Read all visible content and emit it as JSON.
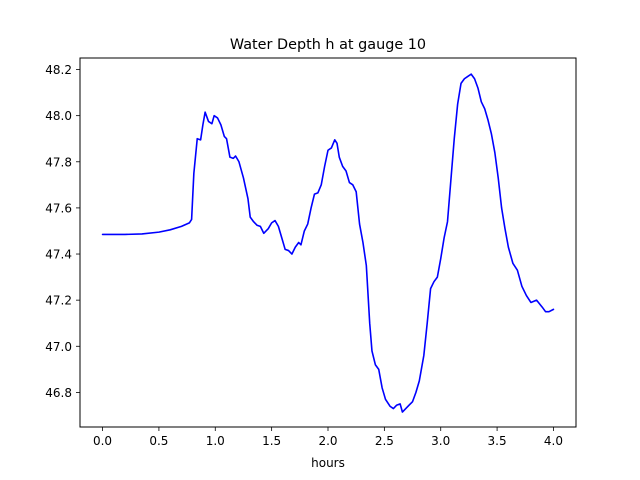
{
  "chart_data": {
    "type": "line",
    "title": "Water Depth h at gauge 10",
    "xlabel": "hours",
    "ylabel": "",
    "xlim": [
      -0.2,
      4.2
    ],
    "ylim": [
      46.65,
      48.25
    ],
    "xticks": [
      0.0,
      0.5,
      1.0,
      1.5,
      2.0,
      2.5,
      3.0,
      3.5,
      4.0
    ],
    "xtick_labels": [
      "0.0",
      "0.5",
      "1.0",
      "1.5",
      "2.0",
      "2.5",
      "3.0",
      "3.5",
      "4.0"
    ],
    "yticks": [
      46.8,
      47.0,
      47.2,
      47.4,
      47.6,
      47.8,
      48.0,
      48.2
    ],
    "ytick_labels": [
      "46.8",
      "47.0",
      "47.2",
      "47.4",
      "47.6",
      "47.8",
      "48.0",
      "48.2"
    ],
    "grid": false,
    "series": [
      {
        "color": "#0000ff",
        "x": [
          0.0,
          0.2,
          0.35,
          0.5,
          0.6,
          0.7,
          0.77,
          0.79,
          0.81,
          0.84,
          0.87,
          0.89,
          0.91,
          0.94,
          0.97,
          0.99,
          1.02,
          1.05,
          1.08,
          1.1,
          1.13,
          1.16,
          1.18,
          1.21,
          1.25,
          1.29,
          1.31,
          1.34,
          1.37,
          1.4,
          1.43,
          1.47,
          1.5,
          1.53,
          1.56,
          1.59,
          1.62,
          1.65,
          1.68,
          1.71,
          1.74,
          1.76,
          1.79,
          1.82,
          1.85,
          1.88,
          1.91,
          1.94,
          1.97,
          2.0,
          2.03,
          2.06,
          2.08,
          2.1,
          2.13,
          2.16,
          2.19,
          2.22,
          2.25,
          2.28,
          2.31,
          2.34,
          2.37,
          2.39,
          2.42,
          2.45,
          2.48,
          2.51,
          2.55,
          2.58,
          2.61,
          2.64,
          2.66,
          2.69,
          2.72,
          2.75,
          2.78,
          2.81,
          2.85,
          2.88,
          2.91,
          2.94,
          2.97,
          3.0,
          3.03,
          3.06,
          3.09,
          3.12,
          3.15,
          3.18,
          3.21,
          3.24,
          3.27,
          3.3,
          3.33,
          3.36,
          3.39,
          3.42,
          3.45,
          3.48,
          3.51,
          3.54,
          3.57,
          3.6,
          3.64,
          3.68,
          3.72,
          3.76,
          3.8,
          3.85,
          3.9,
          3.93,
          3.96,
          4.0
        ],
        "y": [
          47.485,
          47.485,
          47.487,
          47.495,
          47.505,
          47.52,
          47.535,
          47.55,
          47.75,
          47.9,
          47.895,
          47.96,
          48.015,
          47.975,
          47.965,
          48.0,
          47.99,
          47.96,
          47.91,
          47.9,
          47.82,
          47.815,
          47.825,
          47.8,
          47.73,
          47.64,
          47.56,
          47.54,
          47.525,
          47.52,
          47.49,
          47.51,
          47.535,
          47.545,
          47.52,
          47.47,
          47.42,
          47.415,
          47.4,
          47.43,
          47.45,
          47.44,
          47.5,
          47.53,
          47.6,
          47.66,
          47.665,
          47.7,
          47.78,
          47.85,
          47.86,
          47.895,
          47.88,
          47.82,
          47.78,
          47.76,
          47.71,
          47.7,
          47.67,
          47.53,
          47.45,
          47.35,
          47.1,
          46.98,
          46.92,
          46.9,
          46.82,
          46.77,
          46.74,
          46.73,
          46.745,
          46.75,
          46.715,
          46.73,
          46.745,
          46.76,
          46.8,
          46.85,
          46.96,
          47.1,
          47.25,
          47.28,
          47.3,
          47.38,
          47.47,
          47.54,
          47.72,
          47.9,
          48.05,
          48.14,
          48.16,
          48.17,
          48.18,
          48.16,
          48.12,
          48.06,
          48.03,
          47.98,
          47.92,
          47.84,
          47.73,
          47.6,
          47.51,
          47.43,
          47.36,
          47.33,
          47.26,
          47.22,
          47.19,
          47.2,
          47.17,
          47.15,
          47.15,
          47.16
        ]
      }
    ]
  }
}
